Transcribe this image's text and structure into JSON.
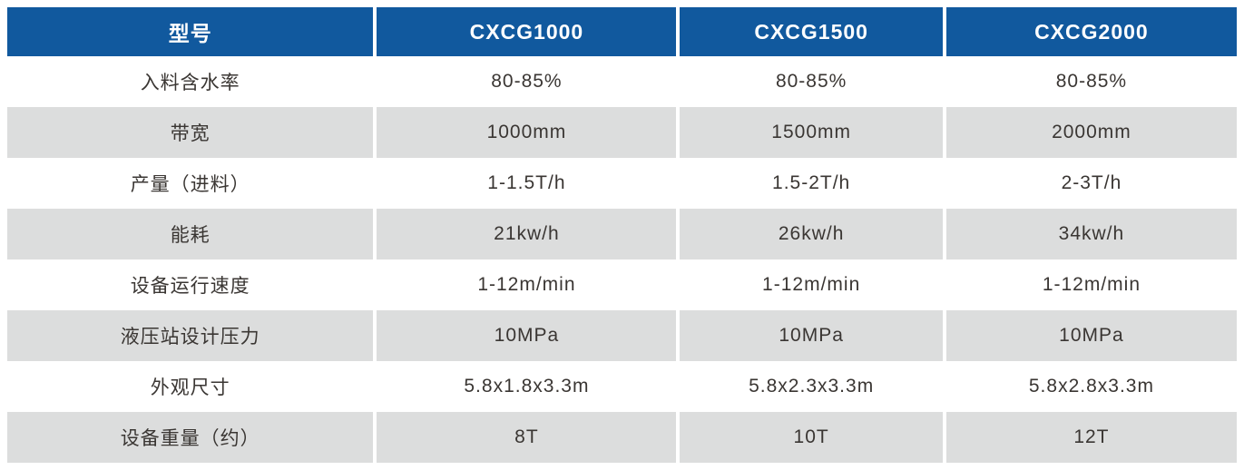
{
  "colors": {
    "header_bg": "#11599E",
    "header_text": "#FFFFFF",
    "row_bg": "#FFFFFF",
    "row_alt_bg": "#DCDDDD",
    "body_text": "#3A3633"
  },
  "table": {
    "header": {
      "model_label": "型号",
      "columns": [
        "CXCG1000",
        "CXCG1500",
        "CXCG2000"
      ]
    },
    "rows": [
      {
        "label": "入料含水率",
        "values": [
          "80-85%",
          "80-85%",
          "80-85%"
        ]
      },
      {
        "label": "带宽",
        "values": [
          "1000mm",
          "1500mm",
          "2000mm"
        ]
      },
      {
        "label": "产量（进料）",
        "values": [
          "1-1.5T/h",
          "1.5-2T/h",
          "2-3T/h"
        ]
      },
      {
        "label": "能耗",
        "values": [
          "21kw/h",
          "26kw/h",
          "34kw/h"
        ]
      },
      {
        "label": "设备运行速度",
        "values": [
          "1-12m/min",
          "1-12m/min",
          "1-12m/min"
        ]
      },
      {
        "label": "液压站设计压力",
        "values": [
          "10MPa",
          "10MPa",
          "10MPa"
        ]
      },
      {
        "label": "外观尺寸",
        "values": [
          "5.8x1.8x3.3m",
          "5.8x2.3x3.3m",
          "5.8x2.8x3.3m"
        ]
      },
      {
        "label": "设备重量（约）",
        "values": [
          "8T",
          "10T",
          "12T"
        ]
      }
    ]
  }
}
